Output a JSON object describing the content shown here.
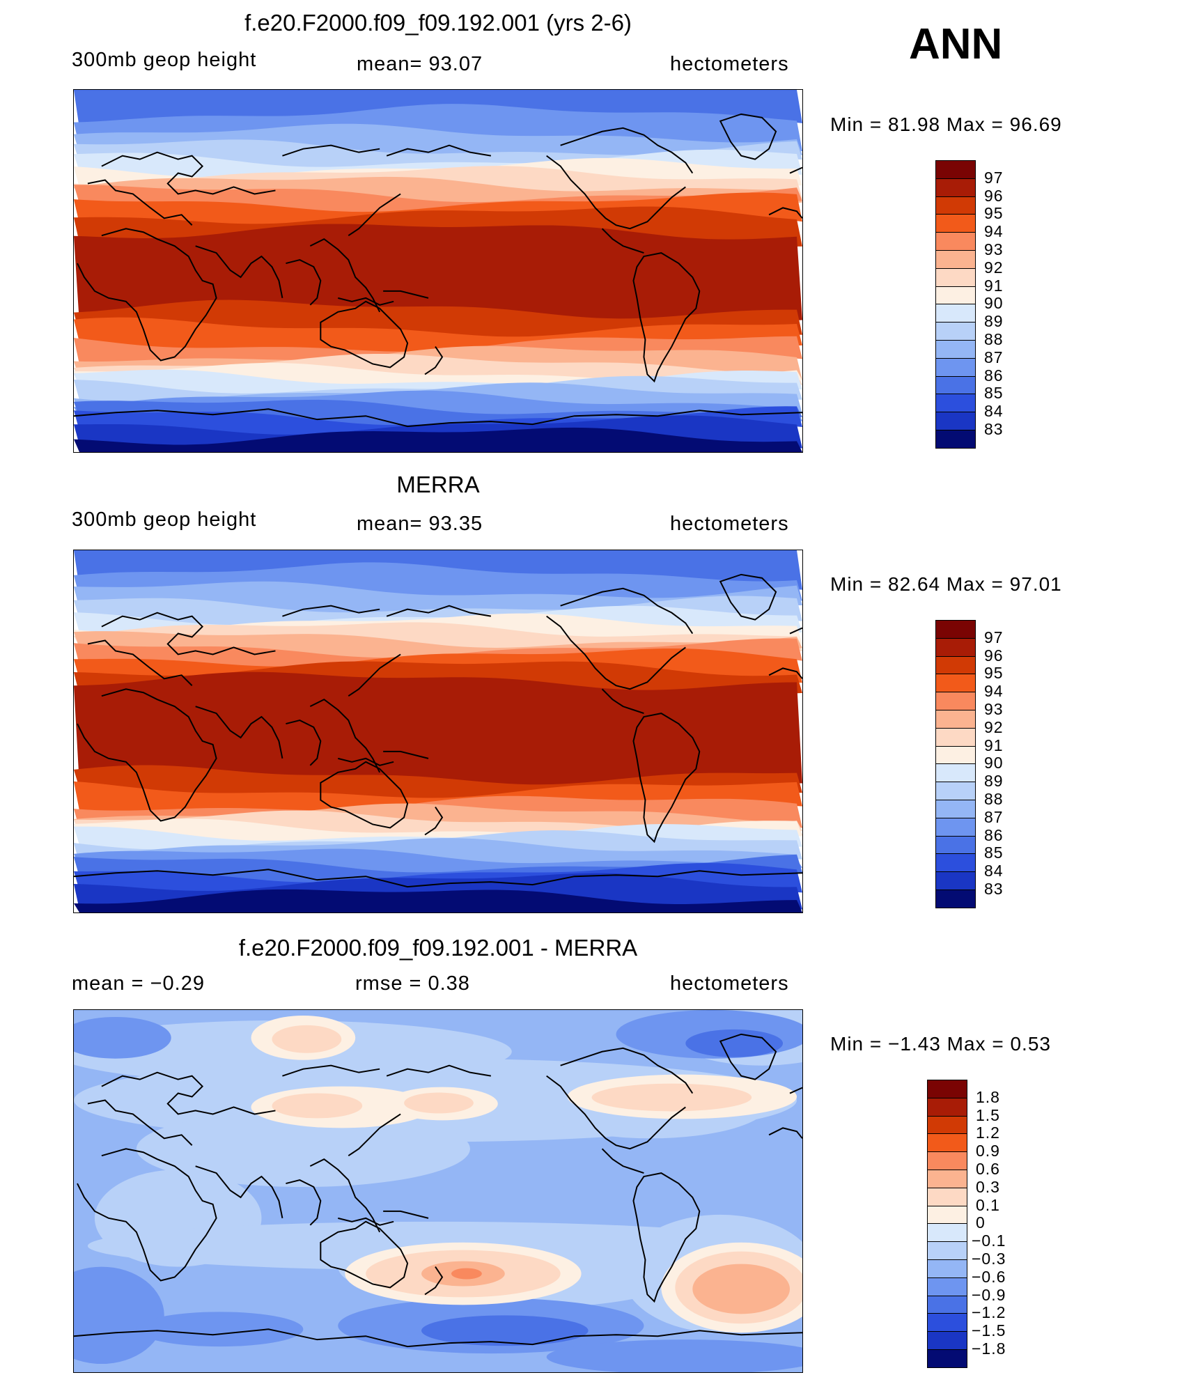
{
  "season": "ANN",
  "units": "hectometers",
  "colors": {
    "warm10": "#7a0403",
    "warm9": "#a81c06",
    "warm8": "#d13a05",
    "warm7": "#f25a1a",
    "warm6": "#f9895e",
    "warm5": "#fbb390",
    "warm4": "#fdd9c4",
    "warm3": "#fdf0e3",
    "cool1": "#d8e8fb",
    "cool2": "#b8d1f8",
    "cool3": "#94b6f5",
    "cool4": "#6e95f0",
    "cool5": "#4a72e6",
    "cool6": "#2c4fdd",
    "cool7": "#1a36c4",
    "cool8": "#0a1c99",
    "cool9": "#030b73",
    "coast": "#000000"
  },
  "chart_data": [
    {
      "type": "heatmap",
      "id": "model",
      "title": "f.e20.F2000.f09_f09.192.001 (yrs 2-6)",
      "left_label": "300mb  geop  height",
      "center_label": "mean=   93.07",
      "right_label": "hectometers",
      "min_max_label": "Min  =   81.98  Max  =   96.69",
      "min": 81.98,
      "max": 96.69,
      "mean": 93.07,
      "colorbar_levels": [
        "97",
        "96",
        "95",
        "94",
        "93",
        "92",
        "91",
        "90",
        "89",
        "88",
        "87",
        "86",
        "85",
        "84",
        "83"
      ],
      "colorbar_colors": [
        "warm10",
        "warm9",
        "warm8",
        "warm7",
        "warm6",
        "warm5",
        "warm4",
        "warm3",
        "cool1",
        "cool2",
        "cool3",
        "cool4",
        "cool5",
        "cool6",
        "cool7",
        "cool9"
      ]
    },
    {
      "type": "heatmap",
      "id": "obs",
      "title": "MERRA",
      "left_label": "300mb  geop  height",
      "center_label": "mean=   93.35",
      "right_label": "hectometers",
      "min_max_label": "Min  =   82.64  Max  =   97.01",
      "min": 82.64,
      "max": 97.01,
      "mean": 93.35,
      "colorbar_levels": [
        "97",
        "96",
        "95",
        "94",
        "93",
        "92",
        "91",
        "90",
        "89",
        "88",
        "87",
        "86",
        "85",
        "84",
        "83"
      ],
      "colorbar_colors": [
        "warm10",
        "warm9",
        "warm8",
        "warm7",
        "warm6",
        "warm5",
        "warm4",
        "warm3",
        "cool1",
        "cool2",
        "cool3",
        "cool4",
        "cool5",
        "cool6",
        "cool7",
        "cool9"
      ]
    },
    {
      "type": "heatmap",
      "id": "diff",
      "title": "f.e20.F2000.f09_f09.192.001 - MERRA",
      "left_label": "mean  =    −0.29",
      "center_label": "rmse  =     0.38",
      "right_label": "hectometers",
      "min_max_label": "Min  =   −1.43  Max  =      0.53",
      "min": -1.43,
      "max": 0.53,
      "mean": -0.29,
      "rmse": 0.38,
      "colorbar_levels": [
        "1.8",
        "1.5",
        "1.2",
        "0.9",
        "0.6",
        "0.3",
        "0.1",
        "0",
        "−0.1",
        "−0.3",
        "−0.6",
        "−0.9",
        "−1.2",
        "−1.5",
        "−1.8"
      ],
      "colorbar_colors": [
        "warm10",
        "warm9",
        "warm8",
        "warm7",
        "warm6",
        "warm5",
        "warm4",
        "warm3",
        "cool1",
        "cool2",
        "cool3",
        "cool4",
        "cool5",
        "cool6",
        "cool7",
        "cool9"
      ]
    }
  ]
}
